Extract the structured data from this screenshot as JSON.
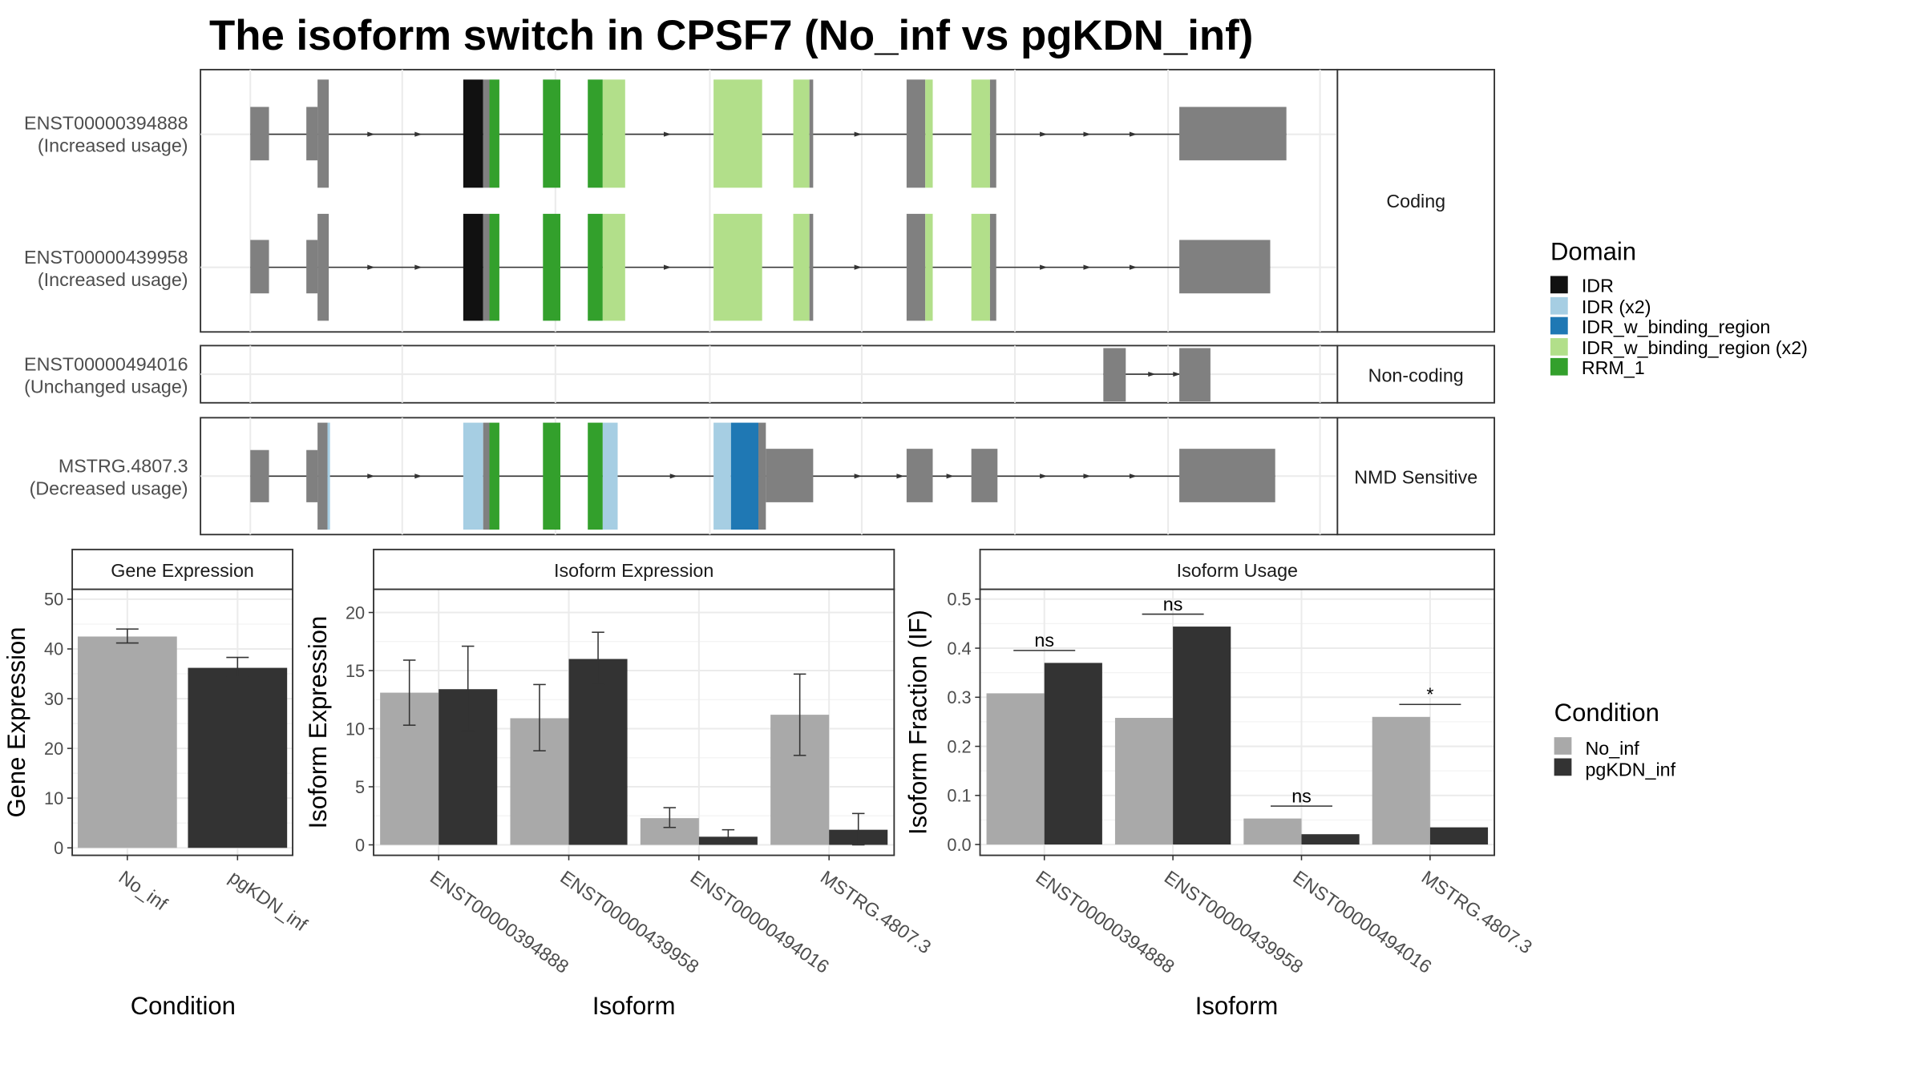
{
  "title": "The isoform switch in CPSF7 (No_inf vs pgKDN_inf)",
  "colors": {
    "no_inf": "#a9a9a9",
    "pgkdn_inf": "#333333",
    "exon": "#808080",
    "IDR": "#111111",
    "IDR_x2": "#a6cee3",
    "IDR_w_binding_region": "#1f78b4",
    "IDR_w_binding_region_x2": "#b2df8a",
    "RRM_1": "#33a02c"
  },
  "structure": {
    "facets": [
      {
        "label": "Coding",
        "transcripts": [
          {
            "id": "ENST00000394888",
            "usage": "(Increased usage)"
          },
          {
            "id": "ENST00000439958",
            "usage": "(Increased usage)"
          }
        ]
      },
      {
        "label": "Non-coding",
        "transcripts": [
          {
            "id": "ENST00000494016",
            "usage": "(Unchanged usage)"
          }
        ]
      },
      {
        "label": "NMD Sensitive",
        "transcripts": [
          {
            "id": "MSTRG.4807.3",
            "usage": "(Decreased usage)"
          }
        ]
      }
    ]
  },
  "domain_legend": {
    "title": "Domain",
    "items": [
      {
        "label": "IDR",
        "color": "#111111"
      },
      {
        "label": "IDR (x2)",
        "color": "#a6cee3"
      },
      {
        "label": "IDR_w_binding_region",
        "color": "#1f78b4"
      },
      {
        "label": "IDR_w_binding_region (x2)",
        "color": "#b2df8a"
      },
      {
        "label": "RRM_1",
        "color": "#33a02c"
      }
    ]
  },
  "condition_legend": {
    "title": "Condition",
    "items": [
      {
        "label": "No_inf",
        "color": "#a9a9a9"
      },
      {
        "label": "pgKDN_inf",
        "color": "#333333"
      }
    ]
  },
  "chart_data": [
    {
      "type": "bar",
      "title": "Gene Expression",
      "xlabel": "Condition",
      "ylabel": "Gene Expression",
      "categories": [
        "No_inf",
        "pgKDN_inf"
      ],
      "values": [
        42.5,
        36.2
      ],
      "errors": [
        [
          41.2,
          44.0
        ],
        [
          34.4,
          38.3
        ]
      ],
      "ylim": [
        -1.5,
        52
      ],
      "yticks": [
        0,
        10,
        20,
        30,
        40,
        50
      ],
      "grid": true
    },
    {
      "type": "bar",
      "title": "Isoform Expression",
      "xlabel": "Isoform",
      "ylabel": "Isoform Expression",
      "categories": [
        "ENST00000394888",
        "ENST00000439958",
        "ENST00000494016",
        "MSTRG.4807.3"
      ],
      "series": [
        {
          "name": "No_inf",
          "values": [
            13.1,
            10.9,
            2.3,
            11.2
          ],
          "errors": [
            [
              10.3,
              15.9
            ],
            [
              8.1,
              13.8
            ],
            [
              1.5,
              3.2
            ],
            [
              7.7,
              14.7
            ]
          ]
        },
        {
          "name": "pgKDN_inf",
          "values": [
            13.4,
            16.0,
            0.7,
            1.3
          ],
          "errors": [
            [
              9.8,
              17.1
            ],
            [
              13.8,
              18.3
            ],
            [
              0.2,
              1.3
            ],
            [
              0.0,
              2.7
            ]
          ]
        }
      ],
      "ylim": [
        -0.9,
        22
      ],
      "yticks": [
        0,
        5,
        10,
        15,
        20
      ],
      "grid": true
    },
    {
      "type": "bar",
      "title": "Isoform Usage",
      "xlabel": "Isoform",
      "ylabel": "Isoform Fraction (IF)",
      "categories": [
        "ENST00000394888",
        "ENST00000439958",
        "ENST00000494016",
        "MSTRG.4807.3"
      ],
      "series": [
        {
          "name": "No_inf",
          "values": [
            0.308,
            0.258,
            0.053,
            0.26
          ]
        },
        {
          "name": "pgKDN_inf",
          "values": [
            0.37,
            0.444,
            0.021,
            0.035
          ]
        }
      ],
      "significance": [
        "ns",
        "ns",
        "ns",
        "*"
      ],
      "ylim": [
        -0.022,
        0.52
      ],
      "yticks": [
        0.0,
        0.1,
        0.2,
        0.3,
        0.4,
        0.5
      ],
      "grid": true
    }
  ]
}
